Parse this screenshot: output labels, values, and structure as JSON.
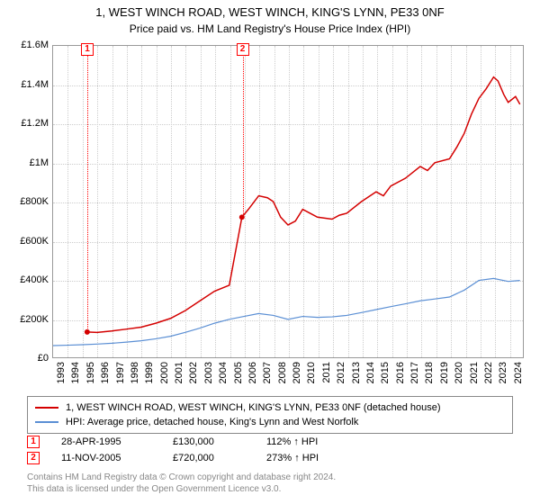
{
  "title_line1": "1, WEST WINCH ROAD, WEST WINCH, KING'S LYNN, PE33 0NF",
  "title_line2": "Price paid vs. HM Land Registry's House Price Index (HPI)",
  "chart": {
    "type": "line",
    "x_start_year": 1993,
    "x_end_year": 2025,
    "y_min": 0,
    "y_max": 1600000,
    "y_ticks": [
      {
        "v": 0,
        "label": "£0"
      },
      {
        "v": 200000,
        "label": "£200K"
      },
      {
        "v": 400000,
        "label": "£400K"
      },
      {
        "v": 600000,
        "label": "£600K"
      },
      {
        "v": 800000,
        "label": "£800K"
      },
      {
        "v": 1000000,
        "label": "£1M"
      },
      {
        "v": 1200000,
        "label": "£1.2M"
      },
      {
        "v": 1400000,
        "label": "£1.4M"
      },
      {
        "v": 1600000,
        "label": "£1.6M"
      }
    ],
    "x_ticks": [
      1993,
      1994,
      1995,
      1996,
      1997,
      1998,
      1999,
      2000,
      2001,
      2002,
      2003,
      2004,
      2005,
      2006,
      2007,
      2008,
      2009,
      2010,
      2011,
      2012,
      2013,
      2014,
      2015,
      2016,
      2017,
      2018,
      2019,
      2020,
      2021,
      2022,
      2023,
      2024
    ],
    "background_color": "#ffffff",
    "grid_color": "#cccccc",
    "series": [
      {
        "name": "property",
        "color": "#d40000",
        "stroke_width": 1.5,
        "points": [
          [
            1995.32,
            130000
          ],
          [
            1996,
            128000
          ],
          [
            1997,
            135000
          ],
          [
            1998,
            145000
          ],
          [
            1999,
            155000
          ],
          [
            2000,
            175000
          ],
          [
            2001,
            200000
          ],
          [
            2002,
            240000
          ],
          [
            2003,
            290000
          ],
          [
            2004,
            340000
          ],
          [
            2005,
            370000
          ],
          [
            2005.86,
            720000
          ],
          [
            2006.3,
            760000
          ],
          [
            2007,
            830000
          ],
          [
            2007.6,
            820000
          ],
          [
            2008,
            800000
          ],
          [
            2008.5,
            720000
          ],
          [
            2009,
            680000
          ],
          [
            2009.5,
            700000
          ],
          [
            2010,
            760000
          ],
          [
            2010.5,
            740000
          ],
          [
            2011,
            720000
          ],
          [
            2012,
            710000
          ],
          [
            2012.5,
            730000
          ],
          [
            2013,
            740000
          ],
          [
            2014,
            800000
          ],
          [
            2015,
            850000
          ],
          [
            2015.5,
            830000
          ],
          [
            2016,
            880000
          ],
          [
            2017,
            920000
          ],
          [
            2018,
            980000
          ],
          [
            2018.5,
            960000
          ],
          [
            2019,
            1000000
          ],
          [
            2020,
            1020000
          ],
          [
            2020.5,
            1080000
          ],
          [
            2021,
            1150000
          ],
          [
            2021.5,
            1250000
          ],
          [
            2022,
            1330000
          ],
          [
            2022.5,
            1380000
          ],
          [
            2023,
            1440000
          ],
          [
            2023.3,
            1420000
          ],
          [
            2023.7,
            1350000
          ],
          [
            2024,
            1310000
          ],
          [
            2024.5,
            1340000
          ],
          [
            2024.8,
            1300000
          ]
        ]
      },
      {
        "name": "hpi",
        "color": "#5b8fd4",
        "stroke_width": 1.2,
        "points": [
          [
            1993,
            60000
          ],
          [
            1994,
            62000
          ],
          [
            1995,
            65000
          ],
          [
            1996,
            68000
          ],
          [
            1997,
            72000
          ],
          [
            1998,
            78000
          ],
          [
            1999,
            85000
          ],
          [
            2000,
            95000
          ],
          [
            2001,
            108000
          ],
          [
            2002,
            128000
          ],
          [
            2003,
            150000
          ],
          [
            2004,
            175000
          ],
          [
            2005,
            195000
          ],
          [
            2006,
            210000
          ],
          [
            2007,
            225000
          ],
          [
            2008,
            215000
          ],
          [
            2009,
            195000
          ],
          [
            2010,
            210000
          ],
          [
            2011,
            205000
          ],
          [
            2012,
            208000
          ],
          [
            2013,
            215000
          ],
          [
            2014,
            230000
          ],
          [
            2015,
            245000
          ],
          [
            2016,
            260000
          ],
          [
            2017,
            275000
          ],
          [
            2018,
            290000
          ],
          [
            2019,
            300000
          ],
          [
            2020,
            310000
          ],
          [
            2021,
            345000
          ],
          [
            2022,
            395000
          ],
          [
            2023,
            405000
          ],
          [
            2024,
            390000
          ],
          [
            2024.8,
            395000
          ]
        ]
      }
    ]
  },
  "markers": [
    {
      "n": "1",
      "year": 1995.32,
      "value": 130000
    },
    {
      "n": "2",
      "year": 2005.86,
      "value": 720000
    }
  ],
  "legend": [
    {
      "color": "#d40000",
      "label": "1, WEST WINCH ROAD, WEST WINCH, KING'S LYNN, PE33 0NF (detached house)"
    },
    {
      "color": "#5b8fd4",
      "label": "HPI: Average price, detached house, King's Lynn and West Norfolk"
    }
  ],
  "events": [
    {
      "n": "1",
      "date": "28-APR-1995",
      "price": "£130,000",
      "pct": "112% ↑ HPI"
    },
    {
      "n": "2",
      "date": "11-NOV-2005",
      "price": "£720,000",
      "pct": "273% ↑ HPI"
    }
  ],
  "footer_line1": "Contains HM Land Registry data © Crown copyright and database right 2024.",
  "footer_line2": "This data is licensed under the Open Government Licence v3.0."
}
